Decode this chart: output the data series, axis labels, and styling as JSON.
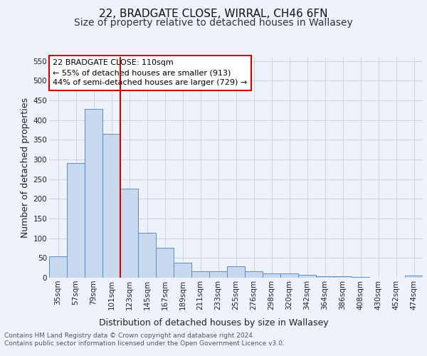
{
  "title1": "22, BRADGATE CLOSE, WIRRAL, CH46 6FN",
  "title2": "Size of property relative to detached houses in Wallasey",
  "xlabel": "Distribution of detached houses by size in Wallasey",
  "ylabel": "Number of detached properties",
  "categories": [
    "35sqm",
    "57sqm",
    "79sqm",
    "101sqm",
    "123sqm",
    "145sqm",
    "167sqm",
    "189sqm",
    "211sqm",
    "233sqm",
    "255sqm",
    "276sqm",
    "298sqm",
    "320sqm",
    "342sqm",
    "364sqm",
    "386sqm",
    "408sqm",
    "430sqm",
    "452sqm",
    "474sqm"
  ],
  "values": [
    55,
    290,
    428,
    365,
    225,
    113,
    76,
    38,
    17,
    17,
    29,
    17,
    10,
    10,
    8,
    4,
    4,
    2,
    0,
    0,
    5
  ],
  "bar_color": "#c8d8ee",
  "bar_edge_color": "#5a8fc4",
  "annotation_box_color": "#cc0000",
  "annotation_line_color": "#cc0000",
  "property_line_x": 3.5,
  "annotation_text_line1": "22 BRADGATE CLOSE: 110sqm",
  "annotation_text_line2": "← 55% of detached houses are smaller (913)",
  "annotation_text_line3": "44% of semi-detached houses are larger (729) →",
  "ylim": [
    0,
    560
  ],
  "yticks": [
    0,
    50,
    100,
    150,
    200,
    250,
    300,
    350,
    400,
    450,
    500,
    550
  ],
  "footnote": "Contains HM Land Registry data © Crown copyright and database right 2024.\nContains public sector information licensed under the Open Government Licence v3.0.",
  "bg_color": "#eef2fb",
  "plot_bg_color": "#eef2fb",
  "grid_color": "#ccccdd",
  "title1_fontsize": 11,
  "title2_fontsize": 10,
  "xlabel_fontsize": 9,
  "ylabel_fontsize": 9,
  "tick_fontsize": 7.5,
  "footnote_fontsize": 6.5,
  "annotation_fontsize": 8
}
